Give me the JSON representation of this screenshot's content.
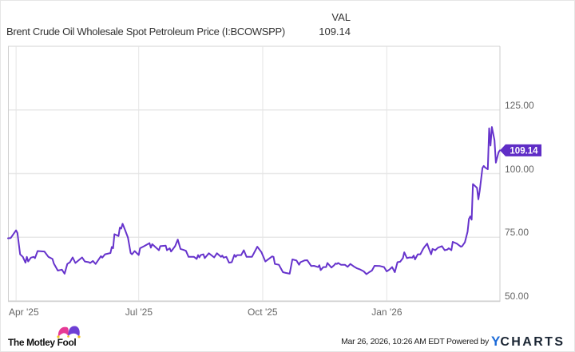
{
  "header": {
    "series_name": "Brent Crude Oil Wholesale Spot Petroleum Price (I:BCOWSPP)",
    "value_column_label": "VAL",
    "value": "109.14"
  },
  "end_label": "109.14",
  "footer": {
    "brand_left": "The Motley Fool",
    "timestamp": "Mar 26, 2026, 10:26 AM EDT",
    "powered_by": "Powered by",
    "brand_right_y": "Y",
    "brand_right_rest": "CHARTS"
  },
  "colors": {
    "line": "#6633cc",
    "label_bg": "#5f2dc6",
    "grid": "#e8e8e8",
    "axis": "#cccccc"
  },
  "chart_data": {
    "type": "line",
    "title": "Brent Crude Oil Wholesale Spot Petroleum Price (I:BCOWSPP)",
    "xlabel": "",
    "ylabel": "",
    "xlim": [
      "2025-03-26",
      "2026-03-26"
    ],
    "ylim": [
      50,
      150
    ],
    "grid": true,
    "y_axis_position": "right",
    "y_ticks": [
      50,
      75,
      100,
      125
    ],
    "y_tick_labels": [
      "50.00",
      "75.00",
      "100.00",
      "125.00"
    ],
    "x_ticks": [
      {
        "date": "2025-04-01",
        "label": "Apr '25"
      },
      {
        "date": "2025-07-01",
        "label": "Jul '25"
      },
      {
        "date": "2025-10-01",
        "label": "Oct '25"
      },
      {
        "date": "2026-01-01",
        "label": "Jan '26"
      }
    ],
    "legend": {
      "position": "top-left",
      "entries": [
        "Brent Crude Oil Wholesale Spot Petroleum Price (I:BCOWSPP)"
      ],
      "value_header": "VAL",
      "values": [
        "109.14"
      ]
    },
    "annotations": [
      {
        "type": "end-value-tag",
        "value": 109.14,
        "label": "109.14"
      }
    ],
    "series": [
      {
        "name": "Brent Crude Oil Wholesale Spot Petroleum Price (I:BCOWSPP)",
        "color": "#6633cc",
        "last_value": 109.14,
        "x": [
          "2025-03-26",
          "2025-03-28",
          "2025-04-01",
          "2025-04-02",
          "2025-04-04",
          "2025-04-06",
          "2025-04-08",
          "2025-04-09",
          "2025-04-10",
          "2025-04-12",
          "2025-04-14",
          "2025-04-15",
          "2025-04-17",
          "2025-04-22",
          "2025-04-25",
          "2025-04-28",
          "2025-04-29",
          "2025-05-02",
          "2025-05-05",
          "2025-05-07",
          "2025-05-09",
          "2025-05-11",
          "2025-05-13",
          "2025-05-15",
          "2025-05-20",
          "2025-05-22",
          "2025-05-25",
          "2025-05-26",
          "2025-05-28",
          "2025-05-30",
          "2025-06-03",
          "2025-06-04",
          "2025-06-06",
          "2025-06-10",
          "2025-06-11",
          "2025-06-12",
          "2025-06-13",
          "2025-06-16",
          "2025-06-17",
          "2025-06-18",
          "2025-06-19",
          "2025-06-21",
          "2025-06-23",
          "2025-06-25",
          "2025-06-26",
          "2025-06-28",
          "2025-07-01",
          "2025-07-02",
          "2025-07-05",
          "2025-07-09",
          "2025-07-10",
          "2025-07-11",
          "2025-07-16",
          "2025-07-17",
          "2025-07-21",
          "2025-07-22",
          "2025-07-24",
          "2025-07-25",
          "2025-07-28",
          "2025-07-30",
          "2025-08-01",
          "2025-08-03",
          "2025-08-05",
          "2025-08-07",
          "2025-08-11",
          "2025-08-13",
          "2025-08-14",
          "2025-08-15",
          "2025-08-16",
          "2025-08-18",
          "2025-08-19",
          "2025-08-22",
          "2025-08-26",
          "2025-08-28",
          "2025-08-31",
          "2025-09-01",
          "2025-09-02",
          "2025-09-04",
          "2025-09-06",
          "2025-09-08",
          "2025-09-10",
          "2025-09-11",
          "2025-09-12",
          "2025-09-15",
          "2025-09-17",
          "2025-09-19",
          "2025-09-23",
          "2025-09-27",
          "2025-09-30",
          "2025-10-03",
          "2025-10-08",
          "2025-10-09",
          "2025-10-10",
          "2025-10-13",
          "2025-10-16",
          "2025-10-18",
          "2025-10-21",
          "2025-10-23",
          "2025-10-26",
          "2025-10-28",
          "2025-10-29",
          "2025-11-01",
          "2025-11-03",
          "2025-11-06",
          "2025-11-08",
          "2025-11-11",
          "2025-11-12",
          "2025-11-13",
          "2025-11-15",
          "2025-11-17",
          "2025-11-18",
          "2025-11-21",
          "2025-11-23",
          "2025-11-24",
          "2025-11-25",
          "2025-11-26",
          "2025-11-28",
          "2025-12-01",
          "2025-12-03",
          "2025-12-05",
          "2025-12-08",
          "2025-12-10",
          "2025-12-12",
          "2025-12-15",
          "2025-12-17",
          "2025-12-19",
          "2025-12-21",
          "2025-12-23",
          "2025-12-27",
          "2025-12-30",
          "2026-01-01",
          "2026-01-03",
          "2026-01-05",
          "2026-01-07",
          "2026-01-09",
          "2026-01-11",
          "2026-01-13",
          "2026-01-14",
          "2026-01-16",
          "2026-01-18",
          "2026-01-20",
          "2026-01-21",
          "2026-01-22",
          "2026-01-24",
          "2026-01-26",
          "2026-01-28",
          "2026-01-29",
          "2026-01-31",
          "2026-02-01",
          "2026-02-03",
          "2026-02-04",
          "2026-02-06",
          "2026-02-08",
          "2026-02-11",
          "2026-02-13",
          "2026-02-15",
          "2026-02-16",
          "2026-02-18",
          "2026-02-19",
          "2026-02-22",
          "2026-02-25",
          "2026-02-26",
          "2026-02-28",
          "2026-03-01",
          "2026-03-02",
          "2026-03-03",
          "2026-03-04",
          "2026-03-05",
          "2026-03-06",
          "2026-03-07",
          "2026-03-09",
          "2026-03-10",
          "2026-03-11",
          "2026-03-13",
          "2026-03-14",
          "2026-03-15",
          "2026-03-17",
          "2026-03-18",
          "2026-03-19",
          "2026-03-20",
          "2026-03-22",
          "2026-03-23",
          "2026-03-25",
          "2026-03-26"
        ],
        "values": [
          74.6,
          74.7,
          77.7,
          76.7,
          68.3,
          67.3,
          65.0,
          67.3,
          65.5,
          67.0,
          67.3,
          66.8,
          69.6,
          69.4,
          67.3,
          66.5,
          64.7,
          61.9,
          62.3,
          60.7,
          64.5,
          65.2,
          67.1,
          64.9,
          67.1,
          65.5,
          65.2,
          64.9,
          65.7,
          64.5,
          67.6,
          67.0,
          68.3,
          68.8,
          71.2,
          70.7,
          76.2,
          75.5,
          78.8,
          78.4,
          80.3,
          77.7,
          74.9,
          68.8,
          68.3,
          69.6,
          68.0,
          70.7,
          71.5,
          72.7,
          70.9,
          72.3,
          69.9,
          71.5,
          71.7,
          69.9,
          70.7,
          69.4,
          71.5,
          74.1,
          70.4,
          70.1,
          69.7,
          67.3,
          67.3,
          66.5,
          68.0,
          67.1,
          68.0,
          68.3,
          66.8,
          68.7,
          67.1,
          68.7,
          67.3,
          67.8,
          67.0,
          67.3,
          65.0,
          65.2,
          68.1,
          67.3,
          68.0,
          68.0,
          69.9,
          67.3,
          67.3,
          71.3,
          69.2,
          65.5,
          67.5,
          67.3,
          64.5,
          64.2,
          61.3,
          61.0,
          60.7,
          66.3,
          65.9,
          64.2,
          65.2,
          65.9,
          66.0,
          63.7,
          63.8,
          63.3,
          64.0,
          62.1,
          63.3,
          63.3,
          64.9,
          63.1,
          64.0,
          64.7,
          64.5,
          64.9,
          64.2,
          64.2,
          63.4,
          64.5,
          63.4,
          62.8,
          62.4,
          61.6,
          60.5,
          61.3,
          61.9,
          63.8,
          63.7,
          63.3,
          61.6,
          62.3,
          63.3,
          61.3,
          65.2,
          65.4,
          66.8,
          69.1,
          66.8,
          67.1,
          67.0,
          67.8,
          66.3,
          68.3,
          68.3,
          70.4,
          71.2,
          72.5,
          70.9,
          68.3,
          70.4,
          69.9,
          70.9,
          71.5,
          69.9,
          70.2,
          70.7,
          69.9,
          73.2,
          72.5,
          71.3,
          71.5,
          73.0,
          75.1,
          77.2,
          82.2,
          83.2,
          81.9,
          95.9,
          95.4,
          94.4,
          89.9,
          93.3,
          102.2,
          103.0,
          102.4,
          101.7,
          117.8,
          111.0,
          118.3,
          113.1,
          104.3,
          108.4,
          109.14
        ]
      }
    ]
  }
}
